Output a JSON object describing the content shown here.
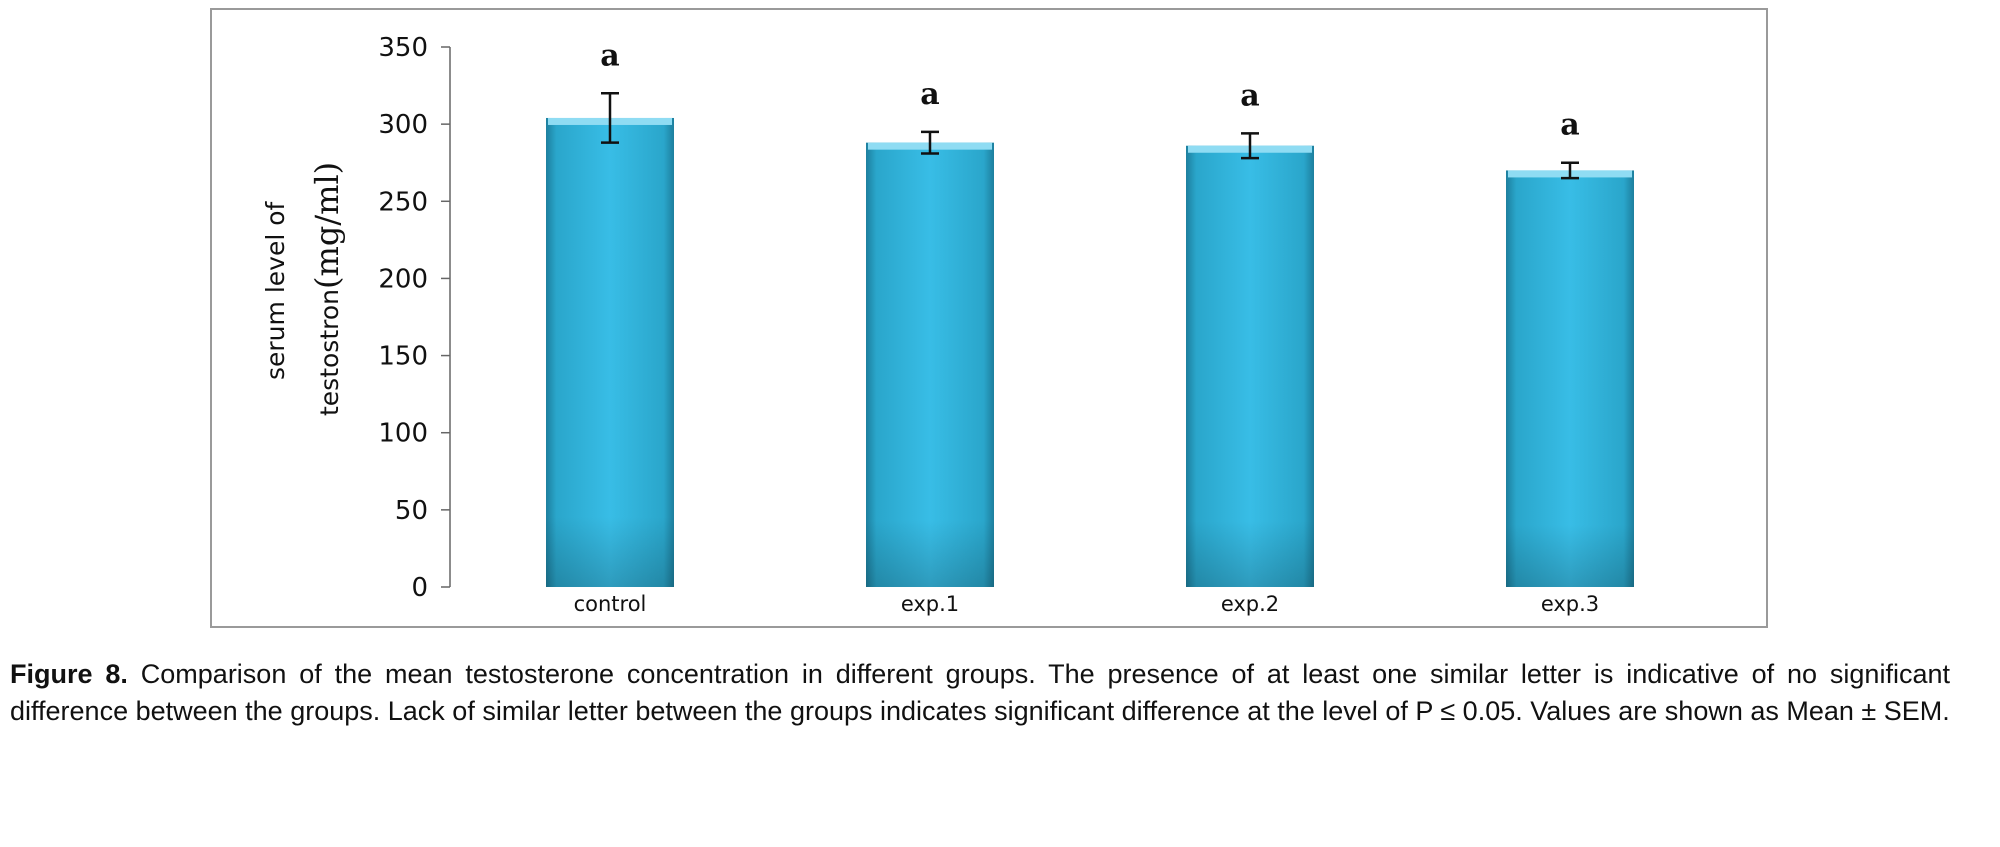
{
  "chart_data": {
    "type": "bar",
    "categories": [
      "control",
      "exp.1",
      "exp.2",
      "exp.3"
    ],
    "values": [
      304,
      288,
      286,
      270
    ],
    "errors": [
      16,
      7,
      8,
      5
    ],
    "significance_letters": [
      "a",
      "a",
      "a",
      "a"
    ],
    "ylabel_line1": "serum level of",
    "ylabel_line2": "testostron",
    "ylabel_unit": "(mg/ml)",
    "ylim": [
      0,
      350
    ],
    "yticks": [
      0,
      50,
      100,
      150,
      200,
      250,
      300,
      350
    ],
    "bar_color": "#33b7df",
    "grid": false
  },
  "caption": {
    "label": "Figure 8.",
    "text": "Comparison of the mean testosterone concentration in different groups. The presence of at least one similar letter is indicative of no significant difference between the groups. Lack of similar letter between the groups indicates significant difference at the level of P ≤ 0.05. Values are shown as Mean ± SEM."
  }
}
